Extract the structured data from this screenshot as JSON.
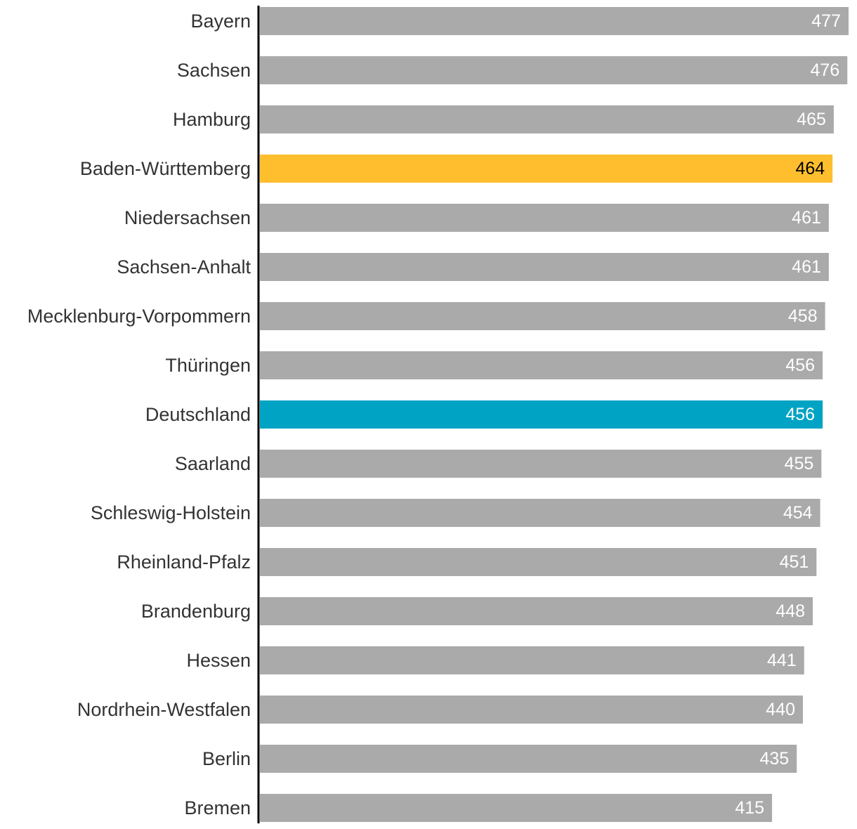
{
  "chart_data": {
    "type": "bar",
    "orientation": "horizontal",
    "title": "",
    "xlabel": "",
    "ylabel": "",
    "categories": [
      "Bayern",
      "Sachsen",
      "Hamburg",
      "Baden-Württemberg",
      "Niedersachsen",
      "Sachsen-Anhalt",
      "Mecklenburg-Vorpommern",
      "Thüringen",
      "Deutschland",
      "Saarland",
      "Schleswig-Holstein",
      "Rheinland-Pfalz",
      "Brandenburg",
      "Hessen",
      "Nordrhein-Westfalen",
      "Berlin",
      "Bremen"
    ],
    "values": [
      477,
      476,
      465,
      464,
      461,
      461,
      458,
      456,
      456,
      455,
      454,
      451,
      448,
      441,
      440,
      435,
      415
    ],
    "xlim": [
      0,
      477
    ],
    "grid": false,
    "colors": {
      "default": "#aaaaaa",
      "highlight_state": "#ffbe2d",
      "highlight_national": "#00a3c4",
      "axis": "#000000",
      "label_text": "#333333",
      "value_text_default": "#ffffff",
      "value_text_highlight_state": "#000000"
    },
    "highlights": {
      "Baden-Württemberg": "highlight_state",
      "Deutschland": "highlight_national"
    }
  }
}
